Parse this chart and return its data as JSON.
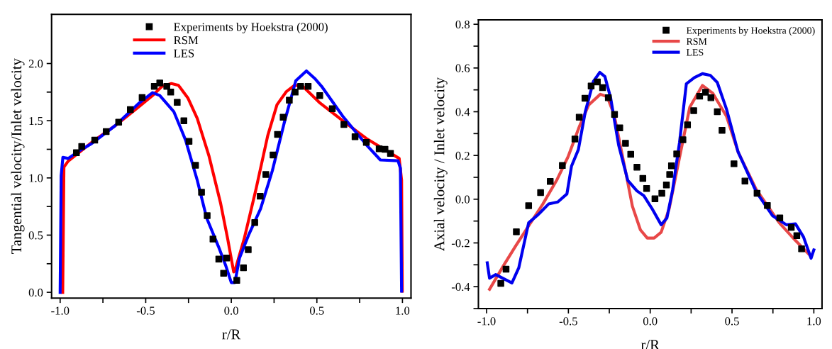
{
  "chart_data": [
    {
      "type": "line",
      "xlabel": "r/R",
      "ylabel": "Tangential velocity/Inlet velocity",
      "xlim": [
        -1.05,
        1.05
      ],
      "ylim": [
        -0.05,
        2.43
      ],
      "xticks": [
        {
          "value": -1,
          "label": "-1.0"
        },
        {
          "value": -0.75,
          "label": null
        },
        {
          "value": -0.5,
          "label": "-0.5"
        },
        {
          "value": -0.25,
          "label": null
        },
        {
          "value": 0,
          "label": "0.0"
        },
        {
          "value": 0.25,
          "label": null
        },
        {
          "value": 0.5,
          "label": "0.5"
        },
        {
          "value": 0.75,
          "label": null
        },
        {
          "value": 1,
          "label": "1.0"
        }
      ],
      "yticks": [
        {
          "value": 0,
          "label": "0.0"
        },
        {
          "value": 0.25,
          "label": null
        },
        {
          "value": 0.5,
          "label": "0.5"
        },
        {
          "value": 0.75,
          "label": null
        },
        {
          "value": 1,
          "label": "1.0"
        },
        {
          "value": 1.25,
          "label": null
        },
        {
          "value": 1.5,
          "label": "1.5"
        },
        {
          "value": 1.75,
          "label": null
        },
        {
          "value": 2,
          "label": "2.0"
        }
      ],
      "legend": "top",
      "grid": false,
      "series": [
        {
          "name": "Experiments by Hoekstra (2000)",
          "type": "scatter",
          "marker": "square",
          "color": "#000000",
          "x": [
            -0.905,
            -0.874,
            -0.798,
            -0.731,
            -0.658,
            -0.59,
            -0.521,
            -0.45,
            -0.418,
            -0.377,
            -0.354,
            -0.316,
            -0.277,
            -0.247,
            -0.209,
            -0.174,
            -0.141,
            -0.107,
            -0.073,
            -0.045,
            -0.027,
            0.032,
            0.071,
            0.099,
            0.137,
            0.169,
            0.202,
            0.244,
            0.27,
            0.303,
            0.339,
            0.373,
            0.405,
            0.449,
            0.517,
            0.59,
            0.658,
            0.723,
            0.789,
            0.864,
            0.898,
            0.93
          ],
          "values": [
            1.22,
            1.275,
            1.33,
            1.405,
            1.487,
            1.597,
            1.703,
            1.8,
            1.83,
            1.8,
            1.75,
            1.66,
            1.5,
            1.32,
            1.11,
            0.875,
            0.67,
            0.466,
            0.29,
            0.167,
            0.3,
            0.105,
            0.215,
            0.373,
            0.61,
            0.84,
            1.03,
            1.2,
            1.38,
            1.53,
            1.68,
            1.75,
            1.8,
            1.8,
            1.72,
            1.605,
            1.467,
            1.36,
            1.31,
            1.255,
            1.25,
            1.215
          ]
        },
        {
          "name": "RSM",
          "color": "#ff0000",
          "x": [
            -0.985,
            -0.978,
            -0.953,
            -0.816,
            -0.679,
            -0.542,
            -0.46,
            -0.405,
            -0.35,
            -0.309,
            -0.254,
            -0.199,
            -0.13,
            -0.062,
            -0.021,
            0.014,
            0.021,
            0.075,
            0.144,
            0.213,
            0.267,
            0.322,
            0.37,
            0.418,
            0.514,
            0.651,
            0.789,
            0.926,
            0.981,
            0.995,
            0.999
          ],
          "values": [
            0.0,
            1.095,
            1.147,
            1.31,
            1.456,
            1.62,
            1.72,
            1.8,
            1.825,
            1.81,
            1.7,
            1.52,
            1.19,
            0.775,
            0.466,
            0.178,
            0.188,
            0.466,
            0.9,
            1.37,
            1.64,
            1.755,
            1.81,
            1.8,
            1.66,
            1.5,
            1.345,
            1.22,
            1.17,
            0.98,
            0.01
          ]
        },
        {
          "name": "LES",
          "color": "#0000ff",
          "x": [
            -1.0,
            -0.994,
            -0.984,
            -0.953,
            -0.885,
            -0.816,
            -0.679,
            -0.542,
            -0.46,
            -0.418,
            -0.336,
            -0.267,
            -0.199,
            -0.144,
            -0.075,
            -0.034,
            0.0,
            0.021,
            0.048,
            0.103,
            0.171,
            0.24,
            0.309,
            0.377,
            0.439,
            0.487,
            0.528,
            0.651,
            0.789,
            0.871,
            0.974,
            0.988,
            0.995
          ],
          "values": [
            0.0,
            1.02,
            1.18,
            1.17,
            1.24,
            1.3,
            1.456,
            1.65,
            1.745,
            1.72,
            1.58,
            1.33,
            0.98,
            0.65,
            0.4,
            0.24,
            0.085,
            0.085,
            0.3,
            0.507,
            0.73,
            1.064,
            1.48,
            1.85,
            1.935,
            1.87,
            1.8,
            1.54,
            1.29,
            1.157,
            1.15,
            1.085,
            0.01
          ]
        }
      ]
    },
    {
      "type": "line",
      "xlabel": "r/R",
      "ylabel": "Axial velocity / Inlet velocity",
      "xlim": [
        -1.05,
        1.05
      ],
      "ylim": [
        -0.5,
        0.82
      ],
      "xticks": [
        {
          "value": -1,
          "label": "-1.0"
        },
        {
          "value": -0.75,
          "label": null
        },
        -0.5,
        {
          "value": -0.25,
          "label": null
        },
        {
          "value": 0,
          "label": "0.0"
        },
        {
          "value": 0.25,
          "label": null
        },
        0.5,
        {
          "value": 0.75,
          "label": null
        },
        {
          "value": 1,
          "label": "1.0"
        }
      ],
      "yticks": [
        {
          "value": -0.5,
          "label": null
        },
        -0.4,
        {
          "value": -0.3,
          "label": null
        },
        -0.2,
        {
          "value": -0.1,
          "label": null
        },
        {
          "value": 0,
          "label": "0.0"
        },
        {
          "value": 0.1,
          "label": null
        },
        0.2,
        {
          "value": 0.3,
          "label": null
        },
        0.4,
        {
          "value": 0.5,
          "label": null
        },
        0.6,
        {
          "value": 0.7,
          "label": null
        },
        0.8
      ],
      "legend": "top right",
      "grid": false,
      "series": [
        {
          "name": "Experiments by Hoekstra (2000)",
          "type": "scatter",
          "marker": "square",
          "color": "#000000",
          "x": [
            -0.913,
            -0.881,
            -0.818,
            -0.743,
            -0.67,
            -0.611,
            -0.537,
            -0.46,
            -0.434,
            -0.399,
            -0.361,
            -0.323,
            -0.291,
            -0.256,
            -0.218,
            -0.186,
            -0.151,
            -0.119,
            -0.081,
            -0.045,
            -0.022,
            0.029,
            0.071,
            0.099,
            0.119,
            0.13,
            0.162,
            0.2,
            0.228,
            0.266,
            0.302,
            0.338,
            0.371,
            0.41,
            0.439,
            0.512,
            0.579,
            0.653,
            0.716,
            0.792,
            0.862,
            0.896,
            0.925
          ],
          "values": [
            -0.385,
            -0.32,
            -0.149,
            -0.03,
            0.03,
            0.081,
            0.154,
            0.275,
            0.375,
            0.462,
            0.518,
            0.536,
            0.51,
            0.464,
            0.388,
            0.326,
            0.256,
            0.205,
            0.146,
            0.095,
            0.049,
            0.002,
            0.027,
            0.065,
            0.113,
            0.153,
            0.207,
            0.272,
            0.34,
            0.405,
            0.471,
            0.489,
            0.464,
            0.4,
            0.315,
            0.162,
            0.083,
            0.027,
            -0.029,
            -0.086,
            -0.129,
            -0.167,
            -0.227
          ]
        },
        {
          "name": "RSM",
          "color": "#e84848",
          "x": [
            -0.982,
            -0.895,
            -0.824,
            -0.74,
            -0.656,
            -0.572,
            -0.502,
            -0.432,
            -0.376,
            -0.305,
            -0.263,
            -0.221,
            -0.151,
            -0.109,
            -0.06,
            -0.018,
            0.024,
            0.067,
            0.116,
            0.186,
            0.242,
            0.319,
            0.382,
            0.467,
            0.537,
            0.649,
            0.789,
            0.888,
            0.979
          ],
          "values": [
            -0.412,
            -0.302,
            -0.216,
            -0.119,
            -0.022,
            0.086,
            0.194,
            0.334,
            0.431,
            0.48,
            0.469,
            0.388,
            0.129,
            -0.032,
            -0.14,
            -0.178,
            -0.178,
            -0.151,
            -0.043,
            0.216,
            0.421,
            0.52,
            0.485,
            0.378,
            0.216,
            0.043,
            -0.108,
            -0.189,
            -0.259
          ]
        },
        {
          "name": "LES",
          "color": "#0000ee",
          "x": [
            -0.996,
            -0.982,
            -0.944,
            -0.845,
            -0.803,
            -0.743,
            -0.684,
            -0.621,
            -0.565,
            -0.509,
            -0.481,
            -0.439,
            -0.397,
            -0.347,
            -0.308,
            -0.277,
            -0.242,
            -0.193,
            -0.137,
            -0.081,
            -0.039,
            0.011,
            0.067,
            0.102,
            0.137,
            0.179,
            0.221,
            0.27,
            0.319,
            0.368,
            0.41,
            0.467,
            0.537,
            0.649,
            0.747,
            0.832,
            0.888,
            0.937,
            0.983,
            1.0
          ],
          "values": [
            -0.291,
            -0.361,
            -0.345,
            -0.383,
            -0.313,
            -0.108,
            -0.07,
            -0.022,
            -0.013,
            0.024,
            0.151,
            0.227,
            0.399,
            0.539,
            0.58,
            0.561,
            0.464,
            0.248,
            0.086,
            0.038,
            0.016,
            -0.043,
            -0.117,
            -0.086,
            0.043,
            0.259,
            0.528,
            0.556,
            0.574,
            0.566,
            0.534,
            0.41,
            0.216,
            0.032,
            -0.075,
            -0.117,
            -0.113,
            -0.173,
            -0.27,
            -0.232
          ]
        }
      ]
    }
  ]
}
